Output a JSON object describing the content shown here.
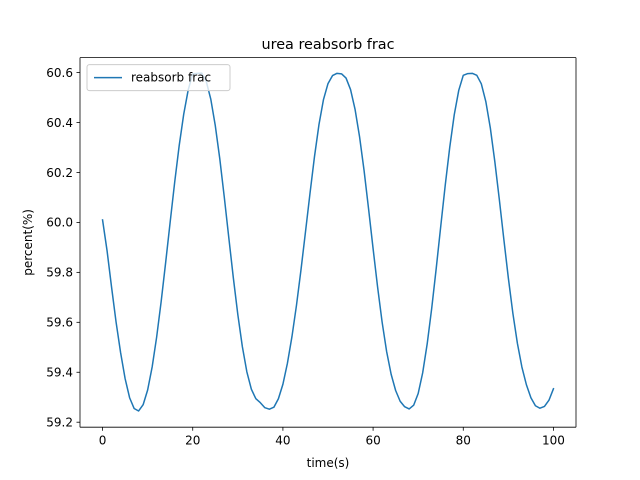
{
  "chart_data": {
    "type": "line",
    "title": "urea reabsorb frac",
    "xlabel": "time(s)",
    "ylabel": "percent(%)",
    "xlim": [
      -5,
      105
    ],
    "ylim": [
      59.18,
      60.66
    ],
    "xticks": [
      0,
      20,
      40,
      60,
      80,
      100
    ],
    "yticks": [
      59.2,
      59.4,
      59.6,
      59.8,
      60.0,
      60.2,
      60.4,
      60.6
    ],
    "xtick_labels": [
      "0",
      "20",
      "40",
      "60",
      "80",
      "100"
    ],
    "ytick_labels": [
      "59.2",
      "59.4",
      "59.6",
      "59.8",
      "60.0",
      "60.2",
      "60.4",
      "60.6"
    ],
    "grid": false,
    "legend_position": "top-left",
    "series": [
      {
        "name": "reabsorb frac",
        "color": "#1f77b4",
        "x": [
          0,
          1,
          2,
          3,
          4,
          5,
          6,
          7,
          8,
          9,
          10,
          11,
          12,
          13,
          14,
          15,
          16,
          17,
          18,
          19,
          20,
          21,
          22,
          23,
          24,
          25,
          26,
          27,
          28,
          29,
          30,
          31,
          32,
          33,
          34,
          35,
          36,
          37,
          38,
          39,
          40,
          41,
          42,
          43,
          44,
          45,
          46,
          47,
          48,
          49,
          50,
          51,
          52,
          53,
          54,
          55,
          56,
          57,
          58,
          59,
          60,
          61,
          62,
          63,
          64,
          65,
          66,
          67,
          68,
          69,
          70,
          71,
          72,
          73,
          74,
          75,
          76,
          77,
          78,
          79,
          80,
          81,
          82,
          83,
          84,
          85,
          86,
          87,
          88,
          89,
          90,
          91,
          92,
          93,
          94,
          95,
          96,
          97,
          98,
          99,
          100
        ],
        "y": [
          60.01,
          59.887,
          59.741,
          59.601,
          59.479,
          59.375,
          59.298,
          59.255,
          59.245,
          59.27,
          59.329,
          59.421,
          59.541,
          59.683,
          59.84,
          60.002,
          60.161,
          60.308,
          60.433,
          60.531,
          60.595,
          60.597,
          60.598,
          60.565,
          60.494,
          60.388,
          60.255,
          60.101,
          59.939,
          59.779,
          59.631,
          59.503,
          59.402,
          59.332,
          59.294,
          59.278,
          59.258,
          59.252,
          59.26,
          59.294,
          59.352,
          59.436,
          59.542,
          59.667,
          59.809,
          59.961,
          60.115,
          60.263,
          60.392,
          60.492,
          60.556,
          60.588,
          60.597,
          60.595,
          60.578,
          60.532,
          60.453,
          60.343,
          60.208,
          60.054,
          59.895,
          59.741,
          59.601,
          59.483,
          59.392,
          59.327,
          59.284,
          59.262,
          59.253,
          59.268,
          59.315,
          59.398,
          59.514,
          59.656,
          59.816,
          59.984,
          60.149,
          60.301,
          60.431,
          60.529,
          60.589,
          60.596,
          60.597,
          60.589,
          60.555,
          60.484,
          60.378,
          60.243,
          60.091,
          59.932,
          59.777,
          59.636,
          59.516,
          59.421,
          59.35,
          59.298,
          59.266,
          59.256,
          59.263,
          59.288,
          59.334
        ]
      }
    ]
  }
}
